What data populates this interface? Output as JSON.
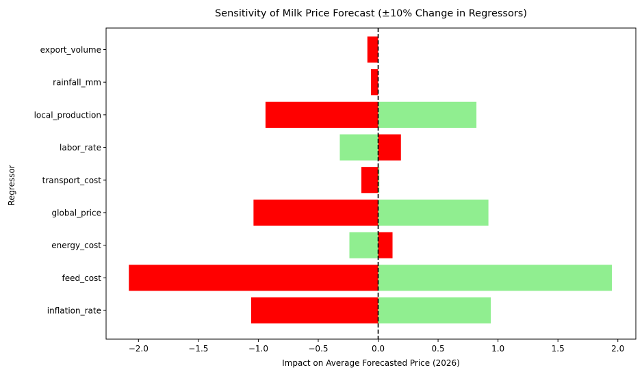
{
  "chart_data": {
    "type": "bar",
    "orientation": "horizontal",
    "title": "Sensitivity of Milk Price Forecast (±10% Change in Regressors)",
    "xlabel": "Impact on Average Forecasted Price (2026)",
    "ylabel": "Regressor",
    "xlim": [
      -2.27,
      2.15
    ],
    "xticks": [
      -2.0,
      -1.5,
      -1.0,
      -0.5,
      0.0,
      0.5,
      1.0,
      1.5,
      2.0
    ],
    "xtick_labels": [
      "−2.0",
      "−1.5",
      "−1.0",
      "−0.5",
      "0.0",
      "0.5",
      "1.0",
      "1.5",
      "2.0"
    ],
    "reference_line": 0,
    "grid": false,
    "categories": [
      "inflation_rate",
      "feed_cost",
      "energy_cost",
      "global_price",
      "transport_cost",
      "labor_rate",
      "local_production",
      "rainfall_mm",
      "export_volume"
    ],
    "series": [
      {
        "color": "#90ee90",
        "values": [
          0.94,
          1.95,
          -0.24,
          0.92,
          0.01,
          -0.32,
          0.82,
          0.0,
          0.0
        ]
      },
      {
        "color": "#ff0000",
        "values": [
          -1.06,
          -2.08,
          0.12,
          -1.04,
          -0.14,
          0.19,
          -0.94,
          -0.06,
          -0.09
        ]
      }
    ]
  }
}
